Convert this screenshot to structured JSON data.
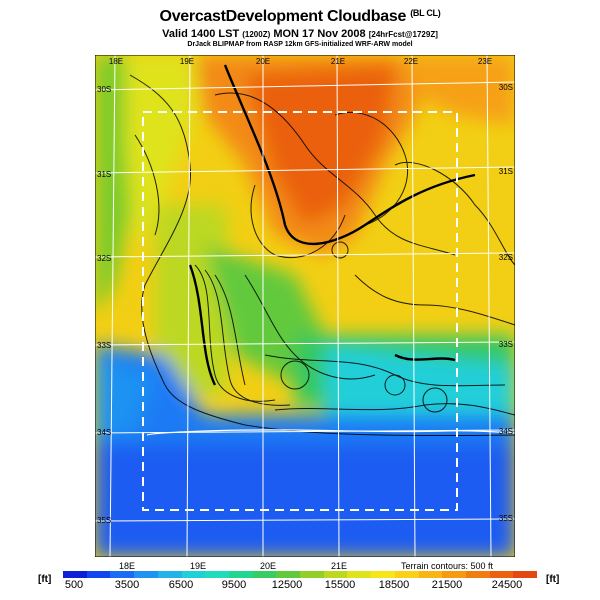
{
  "header": {
    "title": "OvercastDevelopment Cloudbase",
    "title_tag": "(BL CL)",
    "valid_main": "Valid 1400 LST",
    "valid_code": "(1200Z)",
    "valid_date": "MON 17 Nov 2008",
    "valid_fcst": "[24hrFcst@1729Z]",
    "credit": "DrJack BLIPMAP from RASP 12km GFS-initialized WRF-ARW model"
  },
  "map": {
    "top_lon_labels": [
      "18E",
      "19E",
      "20E",
      "21E",
      "22E",
      "23E"
    ],
    "bottom_lon_labels": [
      "18E",
      "19E",
      "20E",
      "21E"
    ],
    "left_lat_labels": [
      "30S",
      "31S",
      "32S",
      "33S",
      "34S",
      "35S"
    ],
    "right_lat_labels": [
      "30S",
      "31S",
      "32S",
      "33S",
      "34S",
      "35S"
    ],
    "terrain_note": "Terrain contours: 500 ft"
  },
  "legend": {
    "unit_left": "[ft]",
    "unit_right": "[ft]",
    "tick_labels": [
      "500",
      "3500",
      "6500",
      "9500",
      "12500",
      "15500",
      "18500",
      "21500",
      "24500"
    ],
    "colors": [
      "#0f1fd8",
      "#1446f0",
      "#1a6cf5",
      "#1f92f2",
      "#22b4e8",
      "#20cfd8",
      "#1fdcbc",
      "#23d690",
      "#37cd64",
      "#62c93c",
      "#93cf28",
      "#bcd820",
      "#dfe31c",
      "#f7e617",
      "#fbd016",
      "#f9b514",
      "#f59a12",
      "#f07d10",
      "#ea610f",
      "#e2480f"
    ]
  }
}
